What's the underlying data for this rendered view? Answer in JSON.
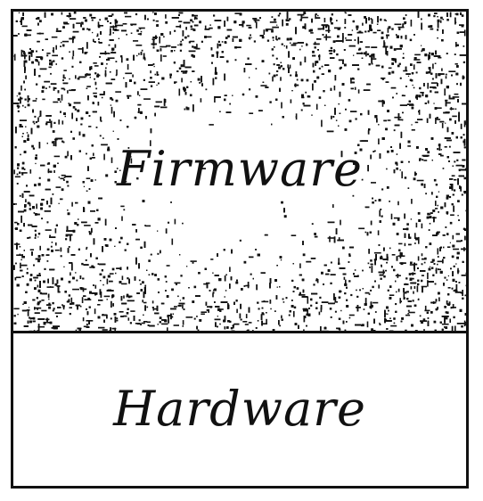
{
  "layers": {
    "top": {
      "label": "Firmware",
      "texture": "stippled-noise",
      "fill": "#ffffff",
      "ink": "#111111"
    },
    "bottom": {
      "label": "Hardware",
      "texture": "none",
      "fill": "#ffffff",
      "ink": "#111111"
    }
  },
  "colors": {
    "border": "#111111",
    "background": "#ffffff"
  }
}
